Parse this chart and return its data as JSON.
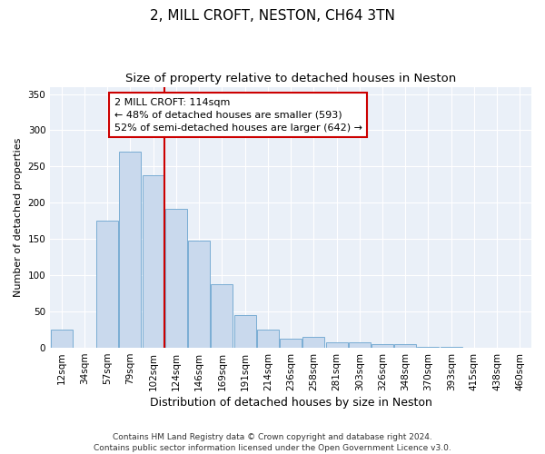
{
  "title": "2, MILL CROFT, NESTON, CH64 3TN",
  "subtitle": "Size of property relative to detached houses in Neston",
  "xlabel": "Distribution of detached houses by size in Neston",
  "ylabel": "Number of detached properties",
  "categories": [
    "12sqm",
    "34sqm",
    "57sqm",
    "79sqm",
    "102sqm",
    "124sqm",
    "146sqm",
    "169sqm",
    "191sqm",
    "214sqm",
    "236sqm",
    "258sqm",
    "281sqm",
    "303sqm",
    "326sqm",
    "348sqm",
    "370sqm",
    "393sqm",
    "415sqm",
    "438sqm",
    "460sqm"
  ],
  "values": [
    25,
    0,
    175,
    270,
    238,
    192,
    148,
    88,
    45,
    25,
    13,
    15,
    7,
    8,
    5,
    5,
    1,
    1,
    0,
    0,
    0
  ],
  "bar_color": "#c9d9ed",
  "bar_edge_color": "#7aadd4",
  "vline_color": "#cc0000",
  "annotation_line1": "2 MILL CROFT: 114sqm",
  "annotation_line2": "← 48% of detached houses are smaller (593)",
  "annotation_line3": "52% of semi-detached houses are larger (642) →",
  "annotation_box_color": "#ffffff",
  "annotation_edge_color": "#cc0000",
  "ylim": [
    0,
    360
  ],
  "yticks": [
    0,
    50,
    100,
    150,
    200,
    250,
    300,
    350
  ],
  "footnote": "Contains HM Land Registry data © Crown copyright and database right 2024.\nContains public sector information licensed under the Open Government Licence v3.0.",
  "background_color": "#eaf0f8",
  "title_fontsize": 11,
  "subtitle_fontsize": 9.5,
  "xlabel_fontsize": 9,
  "ylabel_fontsize": 8,
  "tick_fontsize": 7.5,
  "annotation_fontsize": 8,
  "footnote_fontsize": 6.5
}
